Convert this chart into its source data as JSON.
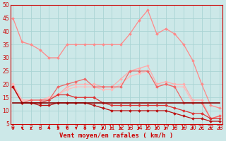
{
  "xlabel": "Vent moyen/en rafales ( km/h )",
  "background_color": "#cce8e8",
  "grid_color": "#aad4d4",
  "x": [
    0,
    1,
    2,
    3,
    4,
    5,
    6,
    7,
    8,
    9,
    10,
    11,
    12,
    13,
    14,
    15,
    16,
    17,
    18,
    19,
    20,
    21,
    22,
    23
  ],
  "series": [
    {
      "color": "#ff8888",
      "linewidth": 0.9,
      "marker": "D",
      "markersize": 2.0,
      "y": [
        45,
        36,
        35,
        33,
        30,
        30,
        35,
        35,
        35,
        35,
        35,
        35,
        35,
        39,
        44,
        48,
        39,
        41,
        39,
        35,
        29,
        20,
        12,
        11
      ]
    },
    {
      "color": "#ffaaaa",
      "linewidth": 0.9,
      "marker": "D",
      "markersize": 2.0,
      "y": [
        20,
        14,
        14,
        14,
        15,
        16,
        19,
        20,
        20,
        20,
        19,
        19,
        22,
        25,
        26,
        27,
        20,
        21,
        20,
        20,
        14,
        14,
        7,
        8
      ]
    },
    {
      "color": "#ffbbbb",
      "linewidth": 0.9,
      "marker": "D",
      "markersize": 2.0,
      "y": [
        20,
        14,
        14,
        14,
        15,
        16,
        18,
        19,
        19,
        19,
        18,
        18,
        20,
        23,
        24,
        25,
        19,
        20,
        19,
        19,
        13,
        13,
        7,
        8
      ]
    },
    {
      "color": "#ee6666",
      "linewidth": 0.9,
      "marker": "D",
      "markersize": 2.0,
      "y": [
        19,
        13,
        14,
        14,
        14,
        19,
        20,
        21,
        22,
        19,
        19,
        19,
        19,
        25,
        25,
        25,
        19,
        20,
        19,
        13,
        13,
        13,
        7,
        8
      ]
    },
    {
      "color": "#dd3333",
      "linewidth": 0.9,
      "marker": "D",
      "markersize": 2.0,
      "y": [
        19,
        13,
        13,
        13,
        14,
        16,
        16,
        15,
        15,
        15,
        13,
        12,
        12,
        12,
        12,
        12,
        12,
        12,
        11,
        10,
        9,
        9,
        7,
        7
      ]
    },
    {
      "color": "#bb1111",
      "linewidth": 0.9,
      "marker": "D",
      "markersize": 2.0,
      "y": [
        19,
        13,
        13,
        12,
        12,
        13,
        13,
        13,
        13,
        12,
        11,
        10,
        10,
        10,
        10,
        10,
        10,
        10,
        9,
        8,
        7,
        7,
        6,
        6
      ]
    },
    {
      "color": "#880000",
      "linewidth": 1.2,
      "marker": null,
      "markersize": 0,
      "y": [
        13,
        13,
        13,
        13,
        13,
        13,
        13,
        13,
        13,
        13,
        13,
        13,
        13,
        13,
        13,
        13,
        13,
        13,
        13,
        13,
        13,
        13,
        13,
        13
      ]
    }
  ],
  "arrow_color": "#cc0000",
  "ylim": [
    5,
    50
  ],
  "yticks": [
    5,
    10,
    15,
    20,
    25,
    30,
    35,
    40,
    45,
    50
  ],
  "xticks": [
    0,
    1,
    2,
    3,
    4,
    5,
    6,
    7,
    8,
    9,
    10,
    11,
    12,
    13,
    14,
    15,
    16,
    17,
    18,
    19,
    20,
    21,
    22,
    23
  ],
  "tick_fontsize": 5.5,
  "xlabel_fontsize": 6.5,
  "tick_color": "#cc0000",
  "axis_color": "#cc0000"
}
